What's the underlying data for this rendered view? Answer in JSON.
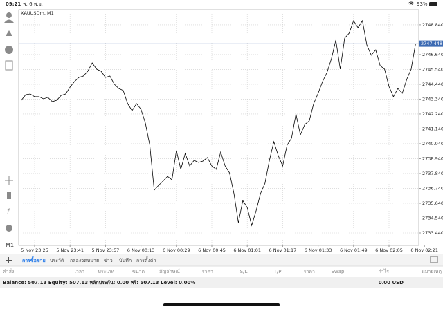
{
  "status_bar": {
    "time": "09:21",
    "date": "พ. 6 พ.ย.",
    "battery": "93%"
  },
  "toolbar": {
    "timeframe": "M1"
  },
  "chart_data": {
    "type": "line",
    "title": "XAUUSDm, M1",
    "color": "#000000",
    "grid": true,
    "categories": [
      null,
      null,
      null,
      "5 Nov 23:25",
      null,
      null,
      null,
      null,
      null,
      null,
      null,
      "5 Nov 23:41",
      null,
      null,
      null,
      null,
      null,
      null,
      null,
      "5 Nov 23:57",
      null,
      null,
      null,
      null,
      null,
      null,
      null,
      "6 Nov 00:13",
      null,
      null,
      null,
      null,
      null,
      null,
      null,
      "6 Nov 00:29",
      null,
      null,
      null,
      null,
      null,
      null,
      null,
      "6 Nov 00:45",
      null,
      null,
      null,
      null,
      null,
      null,
      null,
      "6 Nov 01:01",
      null,
      null,
      null,
      null,
      null,
      null,
      null,
      "6 Nov 01:17",
      null,
      null,
      null,
      null,
      null,
      null,
      null,
      "6 Nov 01:33",
      null,
      null,
      null,
      null,
      null,
      null,
      null,
      "6 Nov 01:49",
      null,
      null,
      null,
      null,
      null,
      null,
      null,
      "6 Nov 02:05",
      null,
      null,
      null,
      null,
      null,
      null,
      null,
      "6 Nov 02:21"
    ],
    "values": [
      2743.26,
      2743.67,
      2743.72,
      2743.52,
      2743.52,
      2743.36,
      2743.47,
      2743.16,
      2743.26,
      2743.62,
      2743.72,
      2744.23,
      2744.64,
      2744.95,
      2745.05,
      2745.41,
      2746.02,
      2745.56,
      2745.41,
      2744.95,
      2745.05,
      2744.44,
      2744.13,
      2743.98,
      2743.01,
      2742.49,
      2743.01,
      2742.6,
      2741.57,
      2739.94,
      2736.61,
      2736.97,
      2737.28,
      2737.63,
      2737.38,
      2739.53,
      2738.15,
      2739.32,
      2738.4,
      2738.81,
      2738.66,
      2738.76,
      2739.02,
      2738.4,
      2738.15,
      2739.42,
      2738.4,
      2737.89,
      2736.36,
      2734.21,
      2735.84,
      2735.33,
      2734.0,
      2735.08,
      2736.36,
      2737.12,
      2738.81,
      2740.19,
      2739.17,
      2738.4,
      2739.94,
      2740.45,
      2742.24,
      2740.7,
      2741.47,
      2741.73,
      2743.01,
      2743.77,
      2744.64,
      2745.31,
      2746.33,
      2747.71,
      2745.56,
      2747.86,
      2748.22,
      2749.14,
      2748.63,
      2749.14,
      2747.35,
      2746.59,
      2746.99,
      2745.82,
      2745.56,
      2744.28,
      2743.52,
      2744.13,
      2743.77,
      2744.8,
      2745.56,
      2747.45,
      null,
      null
    ],
    "ylim": [
      2732.52,
      2749.96
    ],
    "yticks": [
      {
        "value": 2733.44,
        "label": "2733.440"
      },
      {
        "value": 2734.54,
        "label": "2734.540"
      },
      {
        "value": 2735.64,
        "label": "2735.640"
      },
      {
        "value": 2736.74,
        "label": "2736.740"
      },
      {
        "value": 2737.84,
        "label": "2737.840"
      },
      {
        "value": 2738.94,
        "label": "2738.940"
      },
      {
        "value": 2740.04,
        "label": "2740.040"
      },
      {
        "value": 2741.14,
        "label": "2741.140"
      },
      {
        "value": 2742.24,
        "label": "2742.240"
      },
      {
        "value": 2743.34,
        "label": "2743.340"
      },
      {
        "value": 2744.44,
        "label": "2744.440"
      },
      {
        "value": 2745.54,
        "label": "2745.540"
      },
      {
        "value": 2746.64,
        "label": "2746.640"
      },
      {
        "value": 2748.84,
        "label": "2748.840"
      }
    ],
    "current_price": {
      "value": 2747.448,
      "label": "2747.448"
    }
  },
  "tabs": [
    "การซื้อขาย",
    "ประวัติ",
    "กล่องจดหมาย",
    "ข่าว",
    "บันทึก",
    "การตั้งค่า"
  ],
  "columns": [
    "คำสั่ง",
    "เวลา",
    "ประเภท",
    "ขนาด",
    "สัญลักษณ์",
    "ราคา",
    "S/L",
    "T/P",
    "ราคา",
    "Swap",
    "กำไร",
    "หมายเหตุ"
  ],
  "account": {
    "summary": "Balance: 507.13 Equity: 507.13 หลักประกัน: 0.00 ฟรี: 507.13 Level: 0.00%",
    "profit": "0.00  USD"
  }
}
